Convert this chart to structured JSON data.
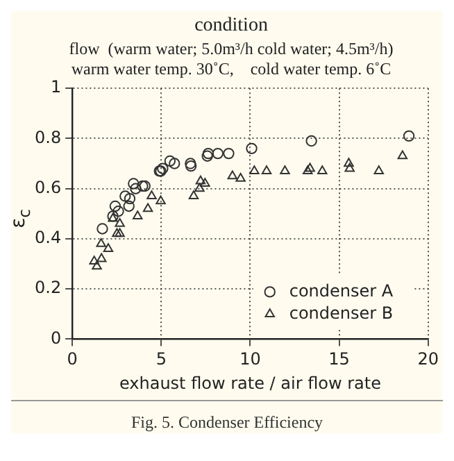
{
  "chart_data": {
    "type": "scatter",
    "title": "condition",
    "subtitle": "flow  (warm water; 5.0m³/h cold water; 4.5m³/h)\nwarm water temp. 30˚C,    cold water temp. 6˚C",
    "xlabel": "exhaust flow rate / air flow rate",
    "ylabel": "ε$_{c}$",
    "annotations": [
      "Fig. 5. Condenser Efficiency"
    ],
    "xlim": [
      0,
      20
    ],
    "xticks": [
      0,
      5,
      10,
      15,
      20
    ],
    "ylim": [
      0,
      1
    ],
    "yticks": [
      0,
      0.2,
      0.4,
      0.6,
      0.8,
      1
    ],
    "grid": true,
    "legend": "bottom right",
    "series": [
      {
        "name": "condenser A",
        "color": "#333333",
        "marker": "circle",
        "x": [
          1.69,
          2.41,
          2.59,
          2.28,
          2.97,
          3.23,
          3.18,
          3.44,
          3.56,
          3.95,
          4.08,
          4.9,
          5.08,
          4.97,
          5.49,
          5.74,
          6.64,
          6.67,
          7.64,
          7.59,
          8.18,
          8.79,
          10.08,
          13.44,
          18.92
        ],
        "values": [
          0.44,
          0.53,
          0.51,
          0.49,
          0.57,
          0.56,
          0.53,
          0.62,
          0.6,
          0.61,
          0.61,
          0.67,
          0.68,
          0.67,
          0.71,
          0.7,
          0.7,
          0.69,
          0.74,
          0.73,
          0.74,
          0.74,
          0.76,
          0.79,
          0.81
        ]
      },
      {
        "name": "condenser B",
        "color": "#333333",
        "marker": "triangle",
        "x": [
          1.23,
          1.38,
          1.64,
          1.62,
          2.02,
          2.51,
          2.67,
          2.67,
          2.28,
          3.67,
          4.25,
          4.46,
          4.97,
          6.82,
          7.15,
          7.21,
          7.46,
          9.0,
          9.46,
          10.23,
          10.92,
          11.95,
          13.23,
          13.36,
          14.05,
          15.54,
          15.59,
          17.23,
          18.56
        ],
        "values": [
          0.31,
          0.29,
          0.32,
          0.38,
          0.36,
          0.42,
          0.42,
          0.46,
          0.48,
          0.49,
          0.52,
          0.57,
          0.55,
          0.57,
          0.6,
          0.63,
          0.62,
          0.65,
          0.64,
          0.67,
          0.67,
          0.67,
          0.67,
          0.68,
          0.67,
          0.7,
          0.68,
          0.67,
          0.73
        ]
      }
    ]
  }
}
